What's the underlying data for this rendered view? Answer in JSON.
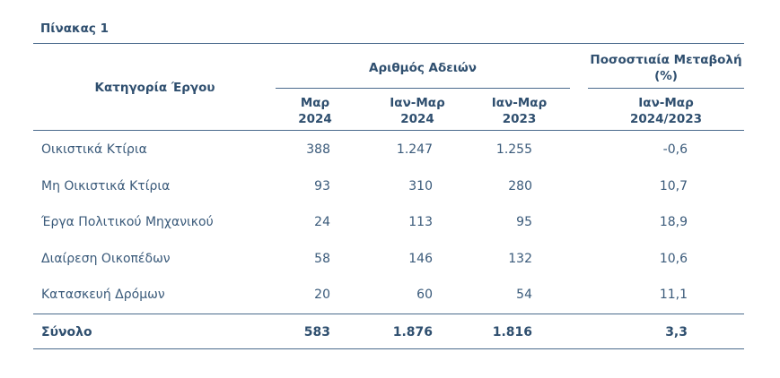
{
  "table": {
    "caption": "Πίνακας 1",
    "header": {
      "category": "Κατηγορία Έργου",
      "permits_group": "Αριθμός Αδειών",
      "change_group": "Ποσοστιαία Μεταβολή (%)",
      "col_mar_2024": [
        "Μαρ",
        "2024"
      ],
      "col_janmar_2024": [
        "Ιαν-Μαρ",
        "2024"
      ],
      "col_janmar_2023": [
        "Ιαν-Μαρ",
        "2023"
      ],
      "col_change": [
        "Ιαν-Μαρ",
        "2024/2023"
      ]
    },
    "rows": [
      {
        "category": "Οικιστικά Κτίρια",
        "mar_2024": "388",
        "janmar_2024": "1.247",
        "janmar_2023": "1.255",
        "change": "-0,6"
      },
      {
        "category": "Μη Οικιστικά Κτίρια",
        "mar_2024": "93",
        "janmar_2024": "310",
        "janmar_2023": "280",
        "change": "10,7"
      },
      {
        "category": "Έργα Πολιτικού Μηχανικού",
        "mar_2024": "24",
        "janmar_2024": "113",
        "janmar_2023": "95",
        "change": "18,9"
      },
      {
        "category": "Διαίρεση Οικοπέδων",
        "mar_2024": "58",
        "janmar_2024": "146",
        "janmar_2023": "132",
        "change": "10,6"
      },
      {
        "category": "Κατασκευή Δρόμων",
        "mar_2024": "20",
        "janmar_2024": "60",
        "janmar_2023": "54",
        "change": "11,1"
      }
    ],
    "total": {
      "category": "Σύνολο",
      "mar_2024": "583",
      "janmar_2024": "1.876",
      "janmar_2023": "1.816",
      "change": "3,3"
    }
  }
}
